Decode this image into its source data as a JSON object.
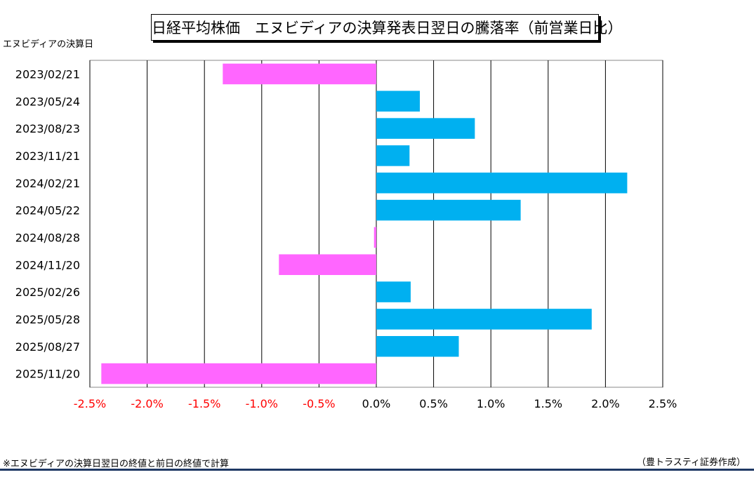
{
  "chart_data": {
    "type": "bar",
    "orientation": "horizontal",
    "title": "日経平均株価　エヌビディアの決算発表日翌日の騰落率（前営業日比）",
    "ylabel": "エヌビディアの決算日",
    "categories": [
      "2023/02/21",
      "2023/05/24",
      "2023/08/23",
      "2023/11/21",
      "2024/02/21",
      "2024/05/22",
      "2024/08/28",
      "2024/11/20",
      "2025/02/26",
      "2025/05/28",
      "2025/08/27",
      "2025/11/20"
    ],
    "values": [
      -1.34,
      0.38,
      0.86,
      0.29,
      2.19,
      1.26,
      -0.02,
      -0.85,
      0.3,
      1.88,
      0.72,
      -2.4
    ],
    "xlim": [
      -2.5,
      2.5
    ],
    "xticks": [
      -2.5,
      -2.0,
      -1.5,
      -1.0,
      -0.5,
      0.0,
      0.5,
      1.0,
      1.5,
      2.0,
      2.5
    ],
    "xtick_labels": [
      "-2.5%",
      "-2.0%",
      "-1.5%",
      "-1.0%",
      "-0.5%",
      "0.0%",
      "0.5%",
      "1.0%",
      "1.5%",
      "2.0%",
      "2.5%"
    ],
    "grid": true,
    "colors": {
      "positive": "#00b0f0",
      "negative": "#ff66ff",
      "negative_tick_label": "#ff0000",
      "tick_label": "#000000",
      "grid": "#000000",
      "footer_rule": "#1f3864"
    }
  },
  "footer": {
    "note": "※エヌビディアの決算日翌日の終値と前日の終値で計算",
    "source": "（豊トラスティ証券作成）"
  }
}
